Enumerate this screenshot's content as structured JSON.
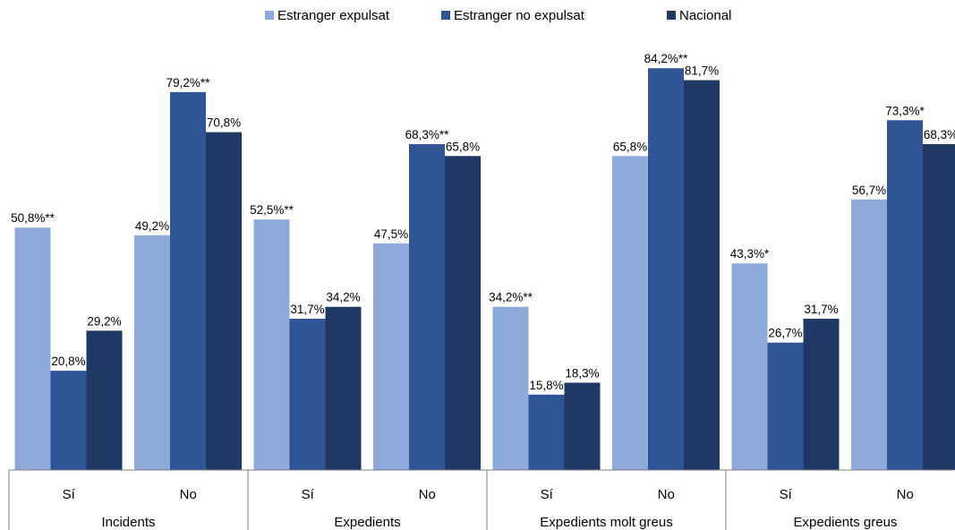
{
  "chart_data": {
    "type": "bar",
    "groups": [
      {
        "label": "Incidents",
        "categories": [
          "Sí",
          "No"
        ]
      },
      {
        "label": "Expedients",
        "categories": [
          "Sí",
          "No"
        ]
      },
      {
        "label": "Expedients molt greus",
        "categories": [
          "Sí",
          "No"
        ]
      },
      {
        "label": "Expedients greus",
        "categories": [
          "Sí",
          "No"
        ]
      }
    ],
    "series": [
      {
        "name": "Estranger expulsat",
        "color": "#8eaadb",
        "values": [
          50.8,
          49.2,
          52.5,
          47.5,
          34.2,
          65.8,
          43.3,
          56.7
        ],
        "labels": [
          "50,8%**",
          "49,2%",
          "52,5%**",
          "47,5%",
          "34,2%**",
          "65,8%",
          "43,3%*",
          "56,7%"
        ]
      },
      {
        "name": "Estranger no expulsat",
        "color": "#2f5597",
        "values": [
          20.8,
          79.2,
          31.7,
          68.3,
          15.8,
          84.2,
          26.7,
          73.3
        ],
        "labels": [
          "20,8%",
          "79,2%**",
          "31,7%",
          "68,3%**",
          "15,8%",
          "84,2%**",
          "26,7%",
          "73,3%*"
        ]
      },
      {
        "name": "Nacional",
        "color": "#203864",
        "values": [
          29.2,
          70.8,
          34.2,
          65.8,
          18.3,
          81.7,
          31.7,
          68.3
        ],
        "labels": [
          "29,2%",
          "70,8%",
          "34,2%",
          "65,8%",
          "18,3%",
          "81,7%",
          "31,7%",
          "68,3%"
        ]
      }
    ],
    "ylim": [
      0,
      100
    ],
    "legend_position": "top",
    "grid": false,
    "title": "",
    "xlabel": "",
    "ylabel": ""
  }
}
